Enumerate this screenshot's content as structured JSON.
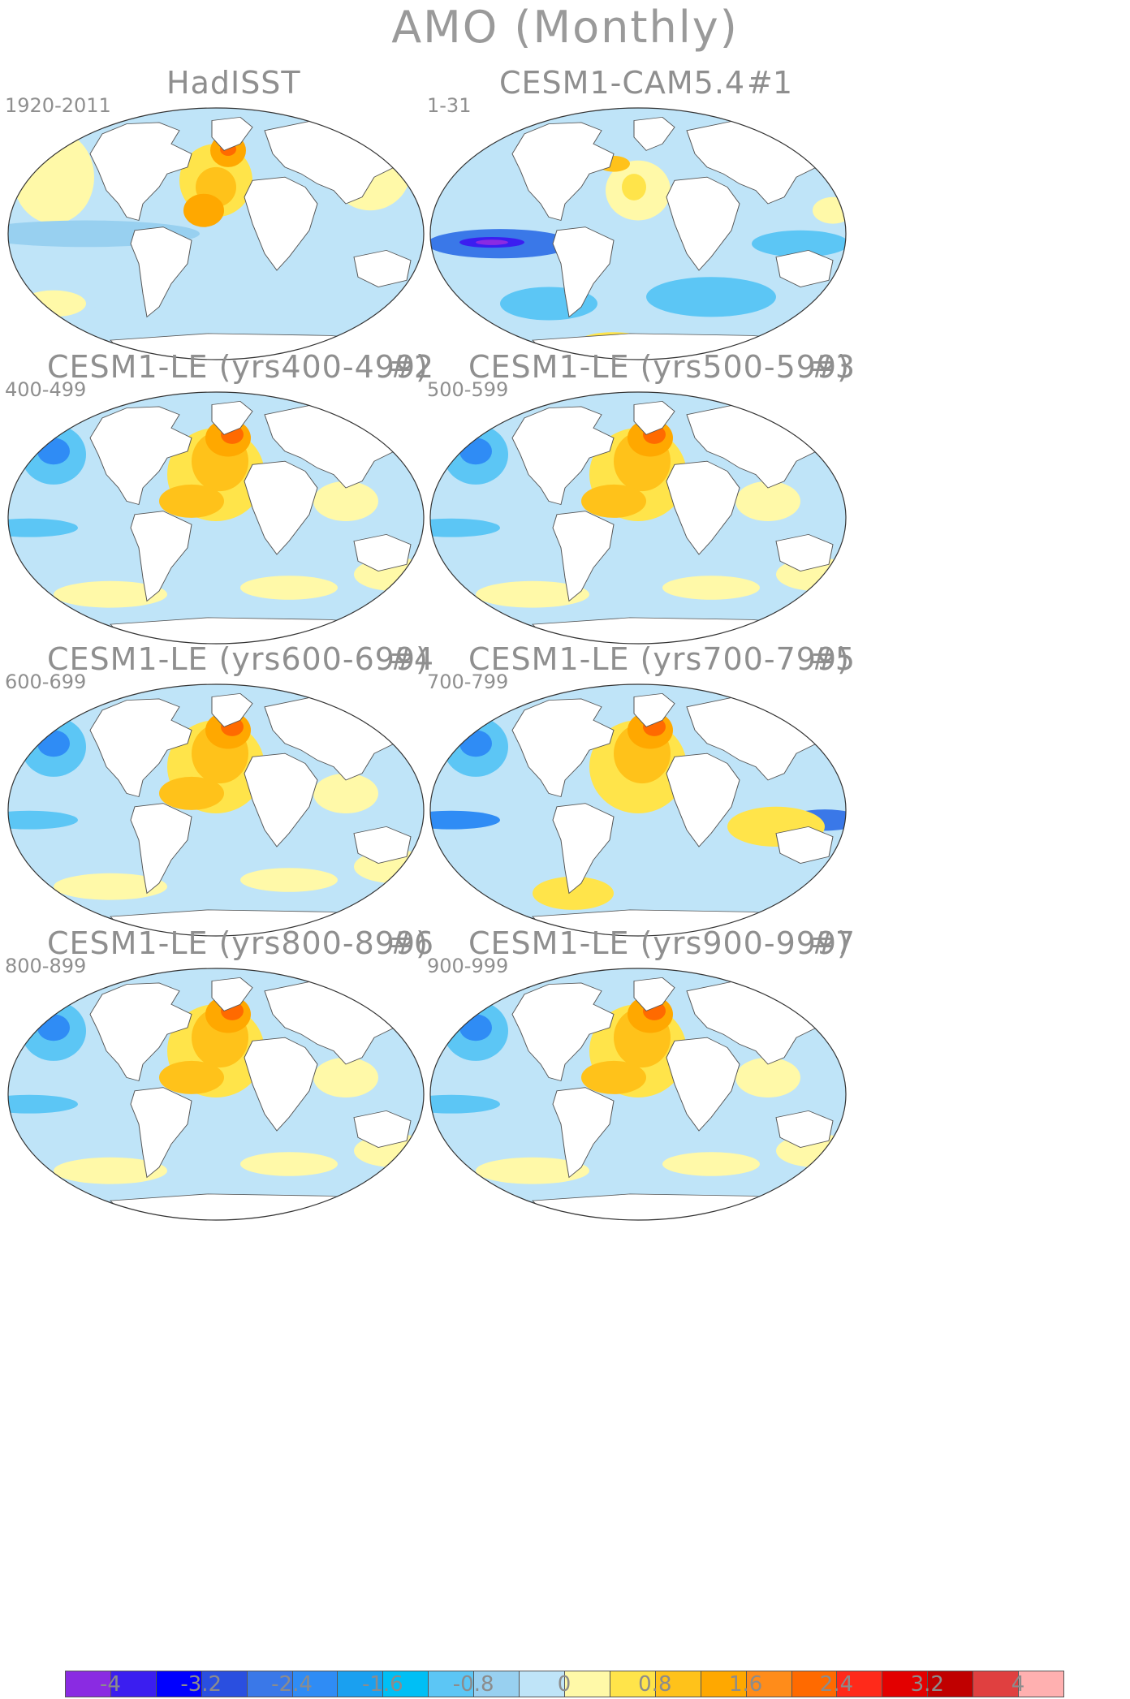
{
  "title": "AMO (Monthly)",
  "panels": [
    {
      "id": "hadisst",
      "title": "HadISST",
      "number": "",
      "years": "1920-2011",
      "pattern": 0
    },
    {
      "id": "cesm1-cam54",
      "title": "CESM1-CAM5.4",
      "number": "#1",
      "years": "1-31",
      "pattern": 1
    },
    {
      "id": "cesm1-le-2",
      "title": "CESM1-LE (yrs400-499)",
      "number": "#2",
      "years": "400-499",
      "pattern": 2
    },
    {
      "id": "cesm1-le-3",
      "title": "CESM1-LE (yrs500-599)",
      "number": "#3",
      "years": "500-599",
      "pattern": 2
    },
    {
      "id": "cesm1-le-4",
      "title": "CESM1-LE (yrs600-699)",
      "number": "#4",
      "years": "600-699",
      "pattern": 2
    },
    {
      "id": "cesm1-le-5",
      "title": "CESM1-LE (yrs700-799)",
      "number": "#5",
      "years": "700-799",
      "pattern": 3
    },
    {
      "id": "cesm1-le-6",
      "title": "CESM1-LE (yrs800-899)",
      "number": "#6",
      "years": "800-899",
      "pattern": 2
    },
    {
      "id": "cesm1-le-7",
      "title": "CESM1-LE (yrs900-999)",
      "number": "#7",
      "years": "900-999",
      "pattern": 2
    }
  ],
  "colorbar": {
    "colors": [
      "#8a2be2",
      "#3b1ef0",
      "#0000ff",
      "#2a4fe0",
      "#3a78e8",
      "#2f8cf5",
      "#1aa0f0",
      "#00bff5",
      "#5cc6f5",
      "#98d0f0",
      "#bfe4f8",
      "#fff9a8",
      "#ffe44a",
      "#ffc21a",
      "#ffa800",
      "#ff8c1a",
      "#ff6a00",
      "#ff2a1a",
      "#e30000",
      "#c00000",
      "#e04040",
      "#ffb0b0"
    ],
    "tick_labels": [
      "-4",
      "-3.2",
      "-2.4",
      "-1.6",
      "-0.8",
      "0",
      "0.8",
      "1.6",
      "2.4",
      "3.2",
      "4"
    ]
  }
}
